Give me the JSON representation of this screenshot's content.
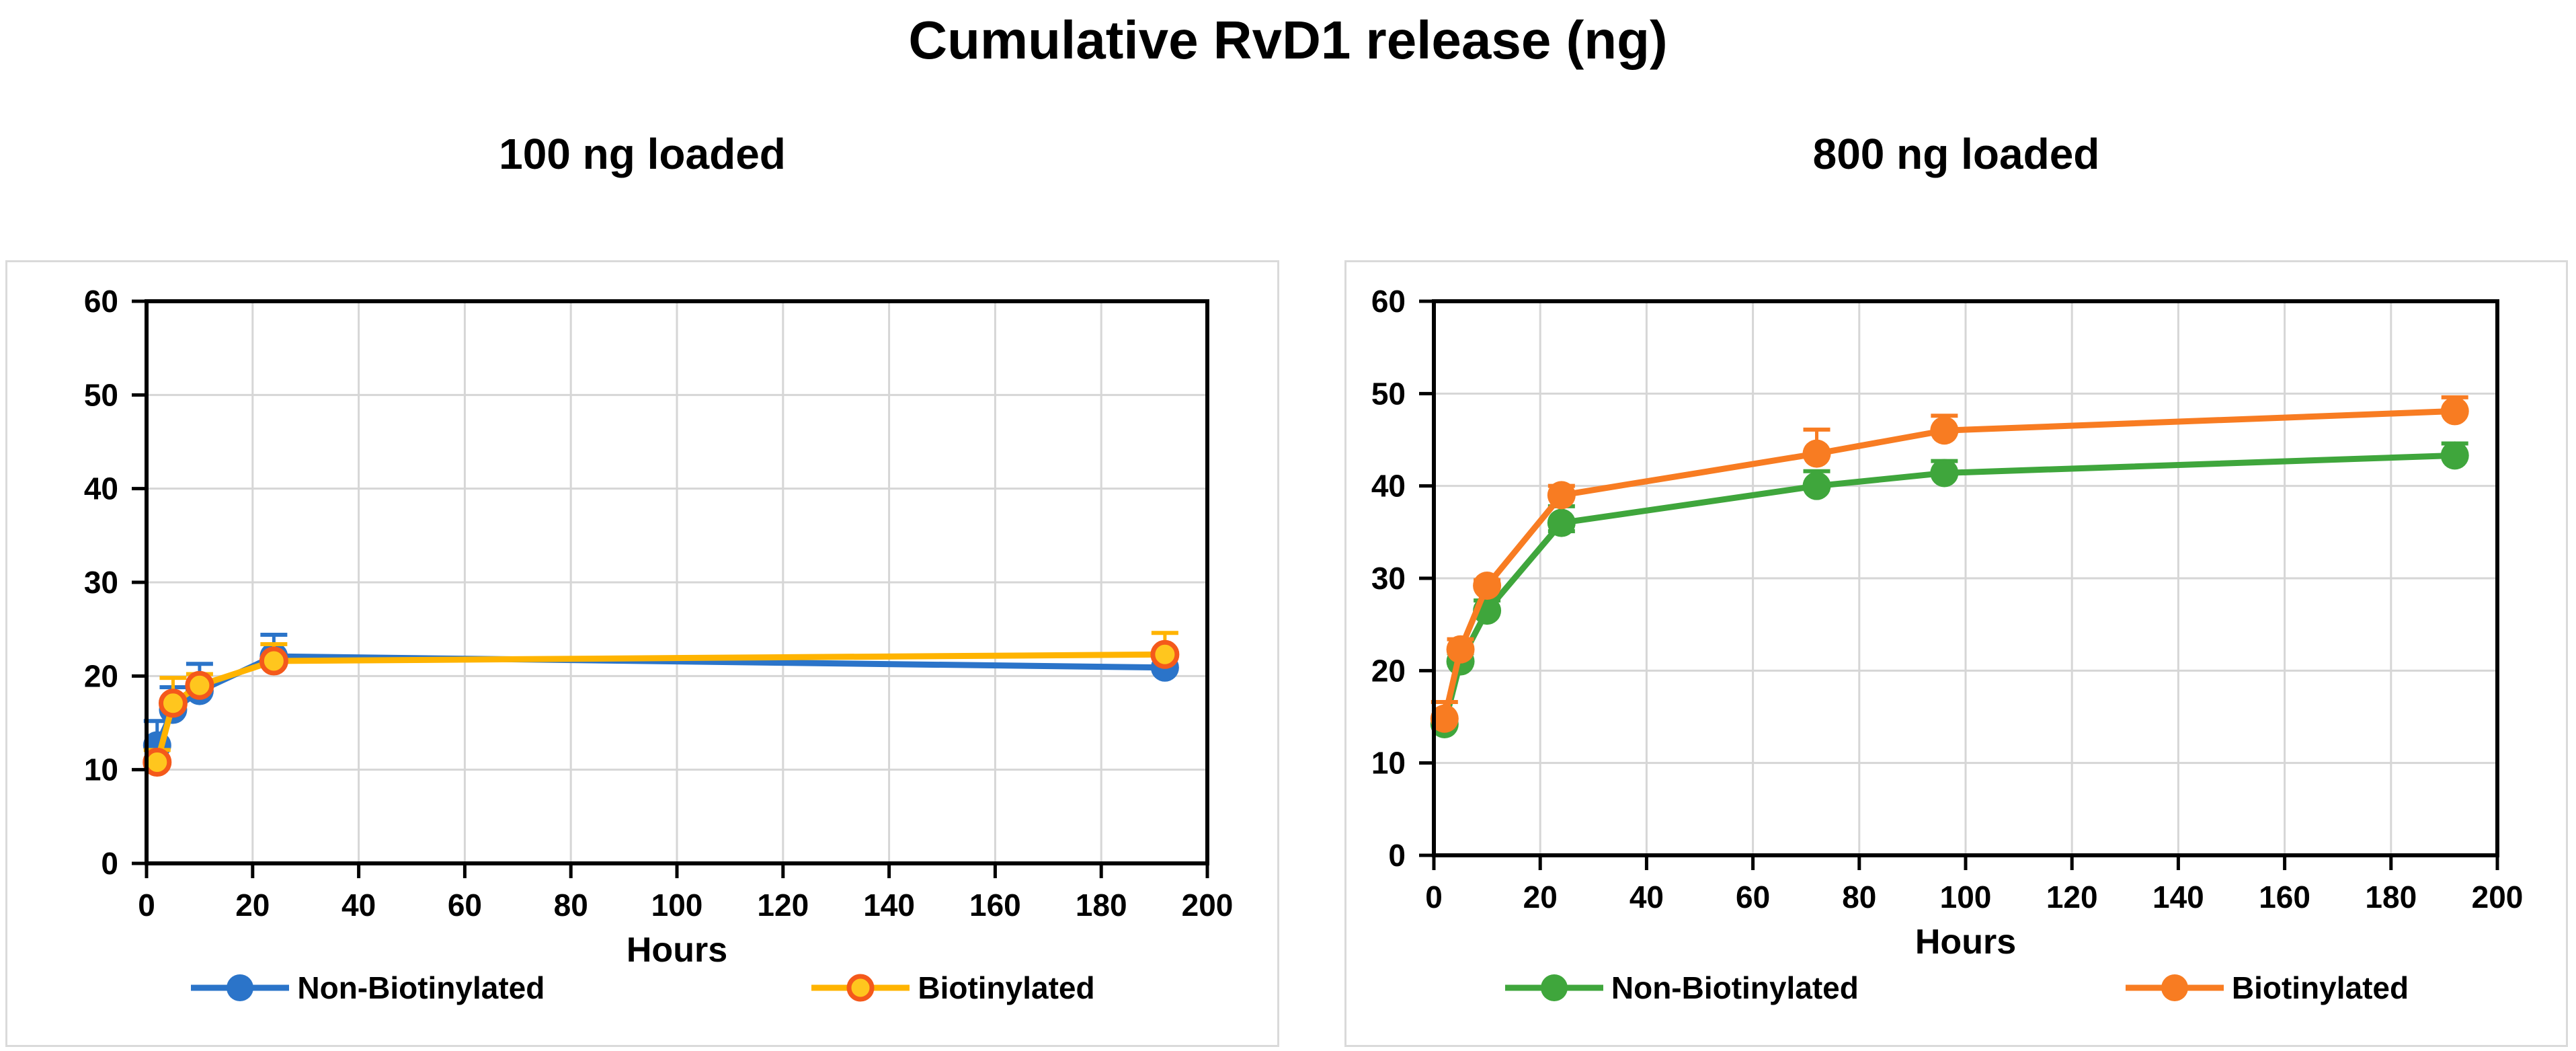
{
  "page": {
    "title": "Cumulative RvD1 release (ng)"
  },
  "chart_data": [
    {
      "type": "line",
      "subtitle": "100 ng loaded",
      "xlabel": "Hours",
      "ylabel": "",
      "grid": true,
      "legend_position": "bottom",
      "axes": {
        "xmin": 0,
        "xmax": 200,
        "xstep": 20,
        "ymin": 0,
        "ymax": 60,
        "ystep": 10
      },
      "x_tick_labels": [
        "0",
        "20",
        "40",
        "60",
        "80",
        "100",
        "120",
        "140",
        "160",
        "180",
        "200"
      ],
      "y_tick_labels": [
        "0",
        "10",
        "20",
        "30",
        "40",
        "50",
        "60"
      ],
      "series": [
        {
          "name": "Non-Biotinylated",
          "color": "#2B74C9",
          "marker_fill": "#2B74C9",
          "marker_stroke": "#2B74C9",
          "err_color": "#2B74C9",
          "points": [
            {
              "x": 2,
              "y": 12.6,
              "eu": 2.6,
              "ed": 0
            },
            {
              "x": 5,
              "y": 16.4,
              "eu": 2.4,
              "ed": 0
            },
            {
              "x": 10,
              "y": 18.4,
              "eu": 2.9,
              "ed": 0
            },
            {
              "x": 24,
              "y": 22.1,
              "eu": 2.3,
              "ed": 0
            },
            {
              "x": 192,
              "y": 20.9,
              "eu": 0,
              "ed": 0
            }
          ]
        },
        {
          "name": "Biotinylated",
          "color": "#FFB400",
          "marker_fill": "#FFC61E",
          "marker_stroke": "#F4591B",
          "err_color": "#FFB400",
          "points": [
            {
              "x": 2,
              "y": 10.8,
              "eu": 1.3,
              "ed": 0
            },
            {
              "x": 5,
              "y": 17.1,
              "eu": 2.7,
              "ed": 0
            },
            {
              "x": 10,
              "y": 19.0,
              "eu": 1.2,
              "ed": 0
            },
            {
              "x": 24,
              "y": 21.6,
              "eu": 1.8,
              "ed": 0
            },
            {
              "x": 192,
              "y": 22.3,
              "eu": 2.3,
              "ed": 0
            }
          ]
        }
      ]
    },
    {
      "type": "line",
      "subtitle": "800 ng loaded",
      "xlabel": "Hours",
      "ylabel": "",
      "grid": true,
      "legend_position": "bottom",
      "axes": {
        "xmin": 0,
        "xmax": 200,
        "xstep": 20,
        "ymin": 0,
        "ymax": 60,
        "ystep": 10
      },
      "x_tick_labels": [
        "0",
        "20",
        "40",
        "60",
        "80",
        "100",
        "120",
        "140",
        "160",
        "180",
        "200"
      ],
      "y_tick_labels": [
        "0",
        "10",
        "20",
        "30",
        "40",
        "50",
        "60"
      ],
      "series": [
        {
          "name": "Non-Biotinylated",
          "color": "#3FA63C",
          "marker_fill": "#3FA63C",
          "marker_stroke": "#3FA63C",
          "err_color": "#3FA63C",
          "points": [
            {
              "x": 2,
              "y": 14.2,
              "eu": 0.7,
              "ed": 0
            },
            {
              "x": 5,
              "y": 21.0,
              "eu": 0.9,
              "ed": 0
            },
            {
              "x": 10,
              "y": 26.5,
              "eu": 1.1,
              "ed": 0
            },
            {
              "x": 24,
              "y": 36.0,
              "eu": 1.8,
              "ed": 0.9
            },
            {
              "x": 72,
              "y": 40.0,
              "eu": 1.6,
              "ed": 0
            },
            {
              "x": 96,
              "y": 41.4,
              "eu": 1.3,
              "ed": 0
            },
            {
              "x": 192,
              "y": 43.3,
              "eu": 1.3,
              "ed": 0
            }
          ]
        },
        {
          "name": "Biotinylated",
          "color": "#F87C22",
          "marker_fill": "#F87C22",
          "marker_stroke": "#F87C22",
          "err_color": "#F87C22",
          "points": [
            {
              "x": 2,
              "y": 14.8,
              "eu": 1.8,
              "ed": 0
            },
            {
              "x": 5,
              "y": 22.3,
              "eu": 1.1,
              "ed": 0
            },
            {
              "x": 10,
              "y": 29.2,
              "eu": 0.6,
              "ed": 0
            },
            {
              "x": 24,
              "y": 39.0,
              "eu": 1.0,
              "ed": 0
            },
            {
              "x": 72,
              "y": 43.5,
              "eu": 2.6,
              "ed": 0
            },
            {
              "x": 96,
              "y": 46.0,
              "eu": 1.6,
              "ed": 0
            },
            {
              "x": 192,
              "y": 48.1,
              "eu": 1.5,
              "ed": 0
            }
          ]
        }
      ]
    }
  ],
  "colors": {
    "grid": "#d6d6d6",
    "axis": "#000000",
    "panel_border": "#dadada",
    "background": "#ffffff"
  }
}
